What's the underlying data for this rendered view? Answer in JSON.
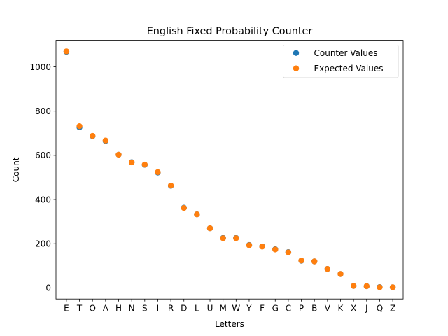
{
  "chart_data": {
    "type": "scatter",
    "title": "English Fixed Probability Counter",
    "xlabel": "Letters",
    "ylabel": "Count",
    "categories": [
      "E",
      "T",
      "O",
      "A",
      "H",
      "N",
      "S",
      "I",
      "R",
      "D",
      "L",
      "U",
      "M",
      "W",
      "Y",
      "F",
      "G",
      "C",
      "P",
      "B",
      "V",
      "K",
      "X",
      "J",
      "Q",
      "Z"
    ],
    "ylim": [
      -50,
      1120
    ],
    "yticks": [
      0,
      200,
      400,
      600,
      800,
      1000
    ],
    "grid": false,
    "legend_position": "top-right",
    "series": [
      {
        "name": "Counter Values",
        "color": "#1f77b4",
        "values": [
          1068,
          727,
          687,
          665,
          603,
          569,
          557,
          522,
          462,
          363,
          333,
          270,
          226,
          226,
          194,
          188,
          175,
          162,
          123,
          120,
          86,
          63,
          9,
          8,
          4,
          3
        ]
      },
      {
        "name": "Expected Values",
        "color": "#ff7f0e",
        "values": [
          1070,
          732,
          688,
          667,
          603,
          568,
          558,
          524,
          463,
          362,
          333,
          270,
          225,
          225,
          193,
          187,
          174,
          161,
          124,
          120,
          86,
          63,
          9,
          8,
          3,
          3
        ]
      }
    ]
  }
}
